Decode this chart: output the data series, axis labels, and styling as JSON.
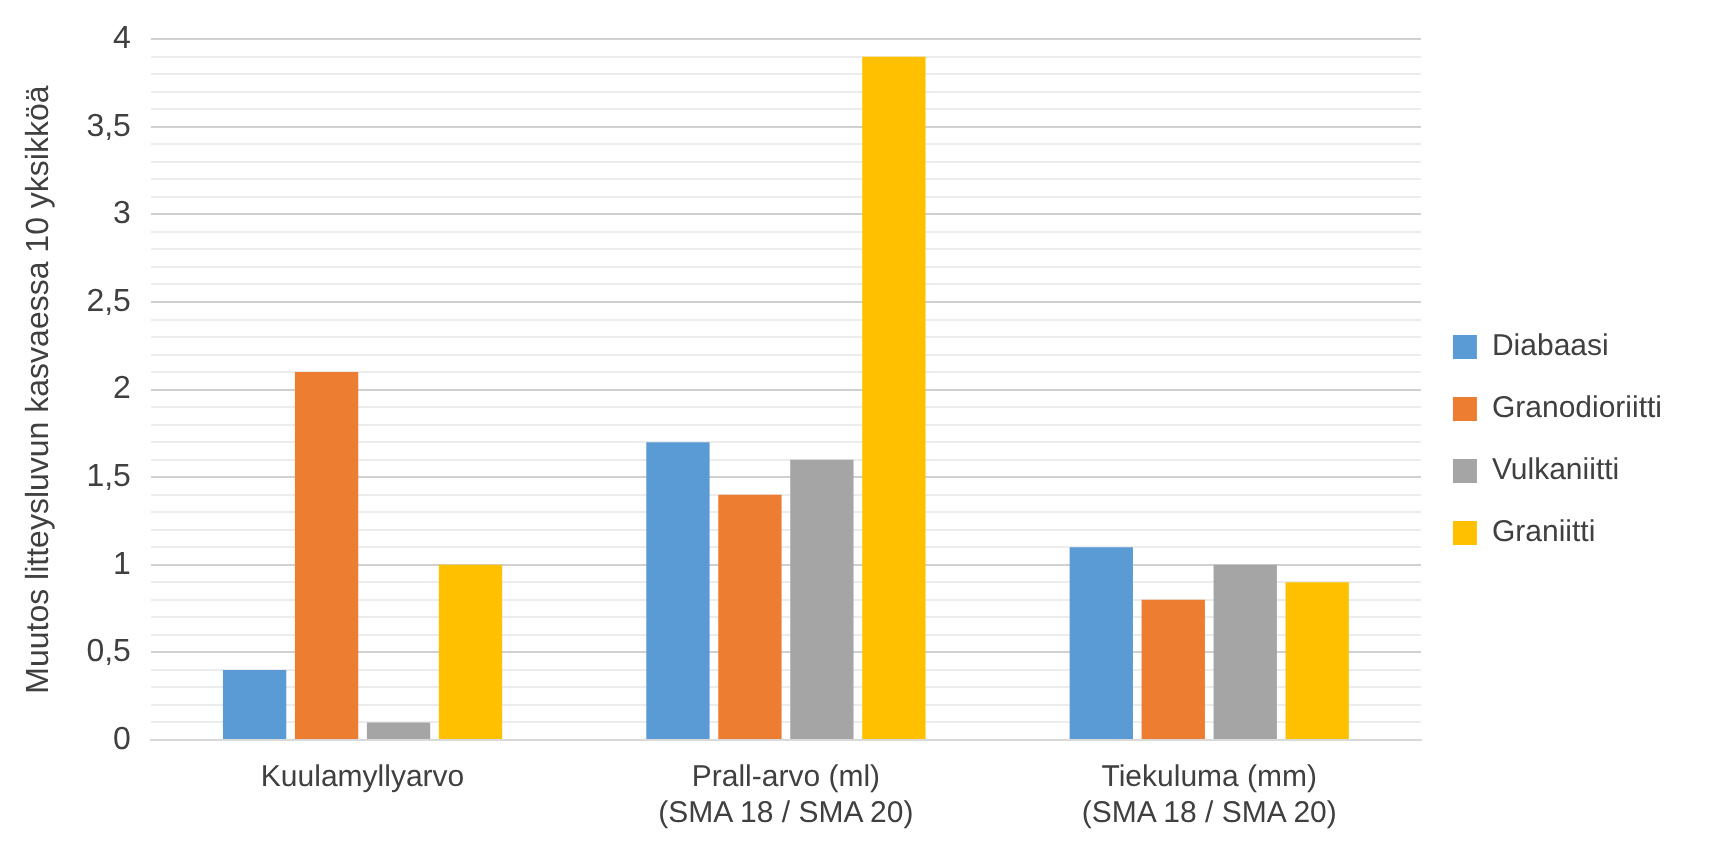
{
  "chart_data": {
    "type": "bar",
    "ylabel": "Muutos litteysluvun kasvaessa 10 yksikköä",
    "categories": [
      "Kuulamyllyarvo",
      "Prall-arvo (ml)\n(SMA 18 / SMA 20)",
      "Tiekuluma (mm)\n(SMA 18 / SMA 20)"
    ],
    "series": [
      {
        "name": "Diabaasi",
        "color": "#5b9bd5",
        "values": [
          0.4,
          1.7,
          1.1
        ]
      },
      {
        "name": "Granodioriitti",
        "color": "#ed7d31",
        "values": [
          2.1,
          1.4,
          0.8
        ]
      },
      {
        "name": "Vulkaniitti",
        "color": "#a5a5a5",
        "values": [
          0.1,
          1.6,
          1.0
        ]
      },
      {
        "name": "Graniitti",
        "color": "#ffc000",
        "values": [
          1.0,
          3.9,
          0.9
        ]
      }
    ],
    "ylim": [
      0,
      4
    ],
    "yticks": [
      0,
      {
        "value": 0.1,
        "label": null
      },
      {
        "value": 0.2,
        "label": null
      },
      {
        "value": 0.3,
        "label": null
      },
      {
        "value": 0.4,
        "label": null
      },
      {
        "value": 0.5,
        "label": "0,5"
      },
      {
        "value": 0.6,
        "label": null
      },
      {
        "value": 0.7,
        "label": null
      },
      {
        "value": 0.8,
        "label": null
      },
      {
        "value": 0.9,
        "label": null
      },
      1,
      {
        "value": 1.1,
        "label": null
      },
      {
        "value": 1.2,
        "label": null
      },
      {
        "value": 1.3,
        "label": null
      },
      {
        "value": 1.4,
        "label": null
      },
      {
        "value": 1.5,
        "label": "1,5"
      },
      {
        "value": 1.6,
        "label": null
      },
      {
        "value": 1.7,
        "label": null
      },
      {
        "value": 1.8,
        "label": null
      },
      {
        "value": 1.9,
        "label": null
      },
      2,
      {
        "value": 2.1,
        "label": null
      },
      {
        "value": 2.2,
        "label": null
      },
      {
        "value": 2.3,
        "label": null
      },
      {
        "value": 2.4,
        "label": null
      },
      {
        "value": 2.5,
        "label": "2,5"
      },
      {
        "value": 2.6,
        "label": null
      },
      {
        "value": 2.7,
        "label": null
      },
      {
        "value": 2.8,
        "label": null
      },
      {
        "value": 2.9,
        "label": null
      },
      3,
      {
        "value": 3.1,
        "label": null
      },
      {
        "value": 3.2,
        "label": null
      },
      {
        "value": 3.3,
        "label": null
      },
      {
        "value": 3.4,
        "label": null
      },
      {
        "value": 3.5,
        "label": "3,5"
      },
      {
        "value": 3.6,
        "label": null
      },
      {
        "value": 3.7,
        "label": null
      },
      {
        "value": 3.8,
        "label": null
      },
      {
        "value": 3.9,
        "label": null
      },
      4
    ],
    "grid": "y",
    "legend": "right"
  }
}
